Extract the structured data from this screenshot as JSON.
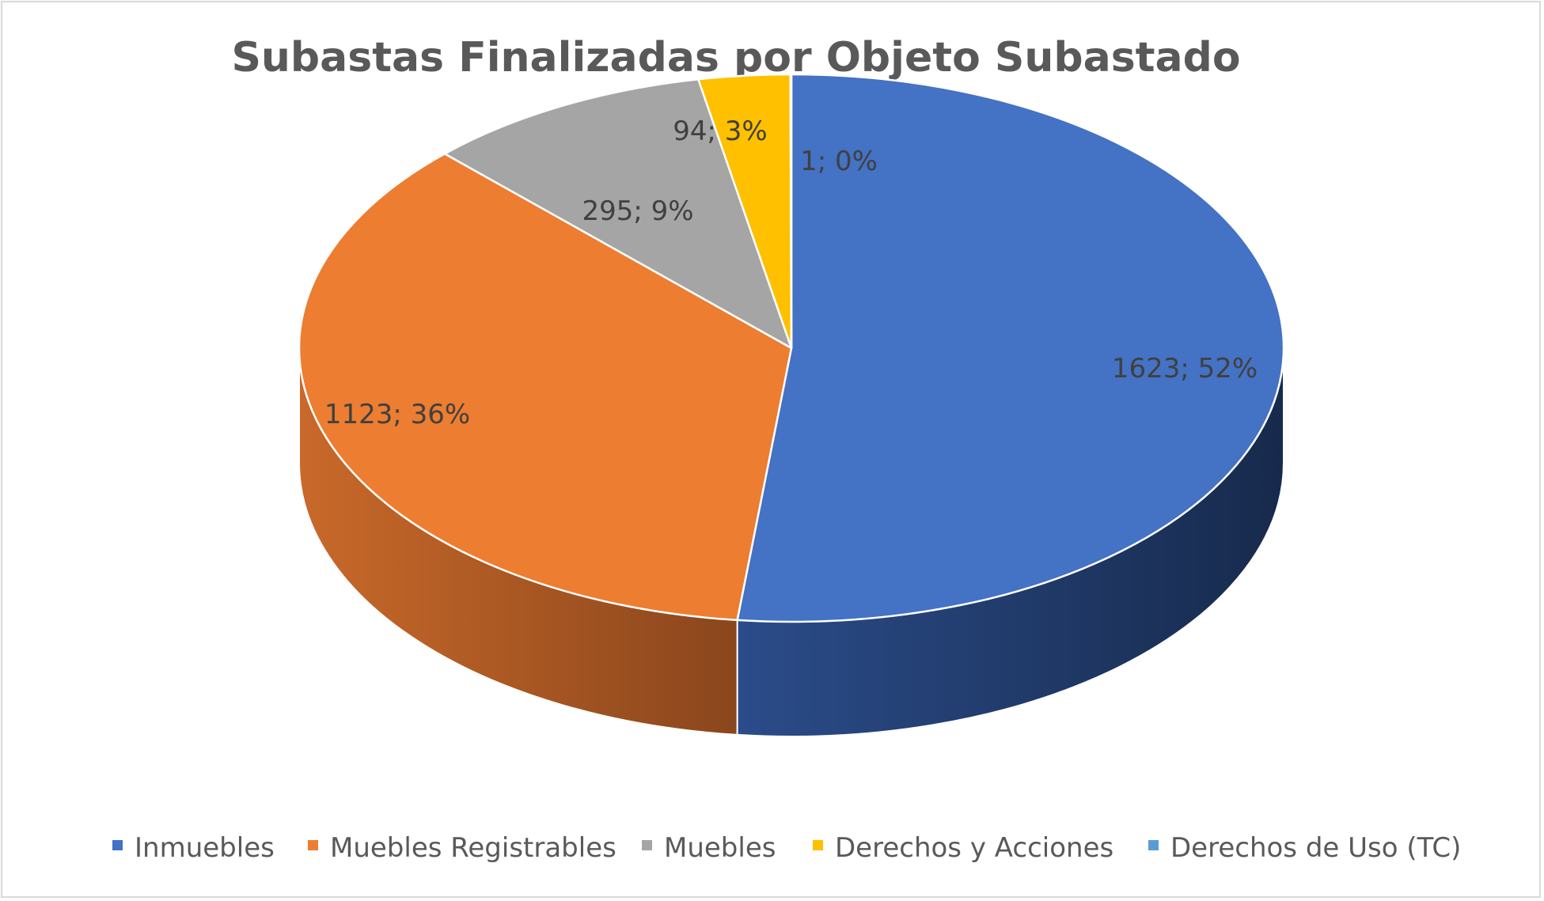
{
  "chart_data": {
    "type": "pie",
    "title": "Subastas Finalizadas por Objeto Subastado",
    "categories": [
      "Inmuebles",
      "Muebles Registrables",
      "Muebles",
      "Derechos y Acciones",
      "Derechos de Uso (TC)"
    ],
    "values": [
      1623,
      1123,
      295,
      94,
      1
    ],
    "percent_labels": [
      "52%",
      "36%",
      "9%",
      "3%",
      "0%"
    ],
    "data_labels": [
      "1623; 52%",
      "1123; 36%",
      "295; 9%",
      "94; 3%",
      "1; 0%"
    ],
    "colors": [
      "#4472c4",
      "#ed7d31",
      "#a5a5a5",
      "#ffc000",
      "#5b9bd5"
    ],
    "style": "3d-pie",
    "legend_position": "bottom"
  }
}
